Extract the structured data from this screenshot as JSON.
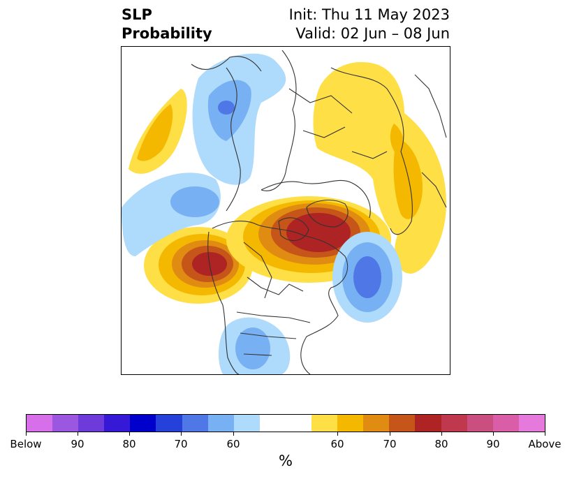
{
  "title": {
    "variable": "SLP",
    "product": "Probability",
    "init": "Init: Thu 11 May 2023",
    "valid": "Valid: 02 Jun – 08 Jun"
  },
  "colorbar": {
    "unit": "%",
    "colors": [
      "#d66fe9",
      "#9c57e0",
      "#6e3ad9",
      "#3619d6",
      "#0000cd",
      "#2541d9",
      "#4f77e6",
      "#77b1f3",
      "#aedafb",
      "#ffffff",
      "#ffffff",
      "#fedf45",
      "#f5b800",
      "#e08c12",
      "#c55518",
      "#ae2323",
      "#c0384e",
      "#cb4e81",
      "#d95ea7",
      "#e679dc"
    ],
    "ticks": [
      {
        "label": "Below"
      },
      {
        "label": "90"
      },
      {
        "label": "80"
      },
      {
        "label": "70"
      },
      {
        "label": "60"
      },
      {
        "label": "60"
      },
      {
        "label": "70"
      },
      {
        "label": "80"
      },
      {
        "label": "90"
      },
      {
        "label": "Above"
      }
    ]
  }
}
